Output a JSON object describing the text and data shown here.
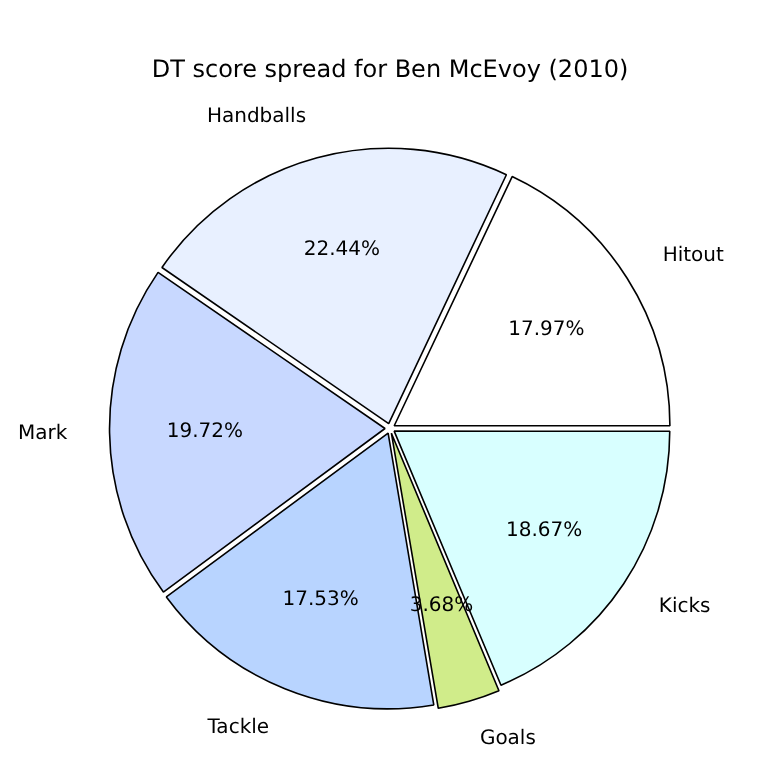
{
  "chart_data": {
    "type": "pie",
    "title": "DT score spread for Ben McEvoy (2010)",
    "categories": [
      "Hitout",
      "Handballs",
      "Mark",
      "Tackle",
      "Goals",
      "Kicks"
    ],
    "values": [
      17.97,
      22.44,
      19.72,
      17.53,
      3.68,
      18.67
    ],
    "colors": [
      "#ffffff",
      "#e8f0ff",
      "#c8d8ff",
      "#b8d4ff",
      "#d0ec8a",
      "#d8ffff"
    ],
    "value_labels": [
      "17.97%",
      "22.44%",
      "19.72%",
      "17.53%",
      "3.68%",
      "18.67%"
    ],
    "legend": false
  }
}
